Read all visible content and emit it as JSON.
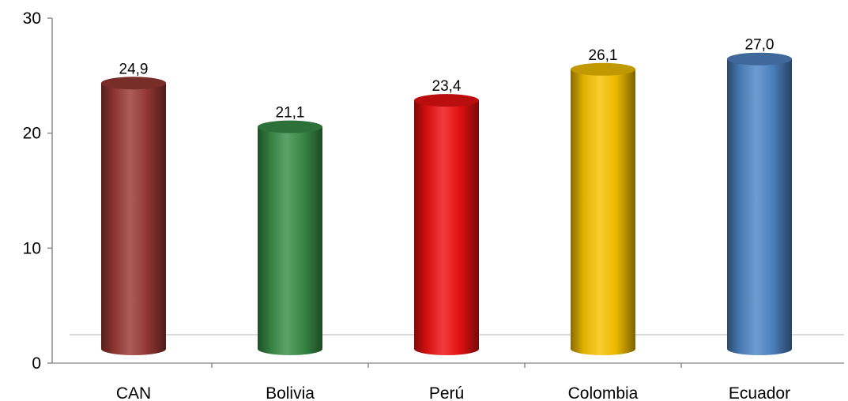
{
  "chart_data": {
    "type": "bar",
    "style": "3d-cylinder",
    "title": "",
    "xlabel": "",
    "ylabel": "",
    "ylim": [
      0,
      30
    ],
    "yticks": [
      "0",
      "10",
      "20",
      "30"
    ],
    "grid": false,
    "legend": "none",
    "categories": [
      "CAN",
      "Bolivia",
      "Perú",
      "Colombia",
      "Ecuador"
    ],
    "values": [
      24.9,
      21.1,
      23.4,
      26.1,
      27.0
    ],
    "value_labels": [
      "24,9",
      "21,1",
      "23,4",
      "26,1",
      "27,0"
    ],
    "colors": [
      "#9b3a35",
      "#3a8f48",
      "#ee1111",
      "#f7c300",
      "#4f86c6"
    ]
  }
}
